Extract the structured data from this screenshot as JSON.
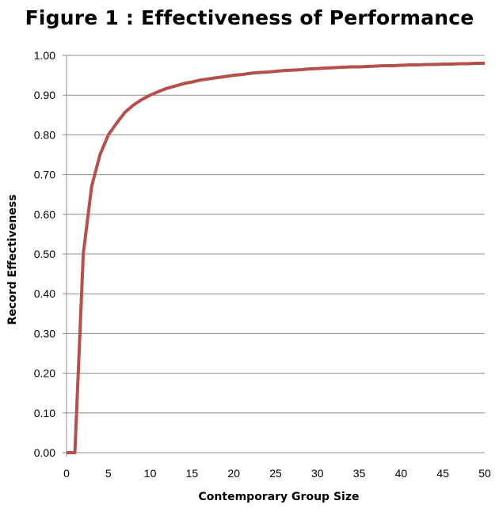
{
  "chart_data": {
    "type": "line",
    "title": "Figure 1 : Effectiveness of Performance",
    "xlabel": "Contemporary Group Size",
    "ylabel": "Record Effectiveness",
    "xlim": [
      0,
      50
    ],
    "ylim": [
      0,
      1
    ],
    "grid": "horizontal",
    "legend": "none",
    "xticks": [
      "0",
      "5",
      "10",
      "15",
      "20",
      "25",
      "30",
      "35",
      "40",
      "45",
      "50"
    ],
    "yticks": [
      "0.00",
      "0.10",
      "0.20",
      "0.30",
      "0.40",
      "0.50",
      "0.60",
      "0.70",
      "0.80",
      "0.90",
      "1.00"
    ],
    "line_color": "#b5504b",
    "x": [
      0,
      1,
      2,
      3,
      4,
      5,
      6,
      7,
      8,
      9,
      10,
      11,
      12,
      13,
      14,
      15,
      16,
      17,
      18,
      19,
      20,
      21,
      22,
      23,
      24,
      25,
      26,
      27,
      28,
      29,
      30,
      31,
      32,
      33,
      34,
      35,
      36,
      37,
      38,
      39,
      40,
      41,
      42,
      43,
      44,
      45,
      46,
      47,
      48,
      49,
      50
    ],
    "series": [
      {
        "values": [
          0.0,
          0.0,
          0.5,
          0.67,
          0.75,
          0.8,
          0.83,
          0.857,
          0.875,
          0.889,
          0.9,
          0.909,
          0.917,
          0.923,
          0.929,
          0.933,
          0.938,
          0.941,
          0.944,
          0.947,
          0.95,
          0.952,
          0.955,
          0.957,
          0.958,
          0.96,
          0.962,
          0.963,
          0.964,
          0.966,
          0.967,
          0.968,
          0.969,
          0.97,
          0.971,
          0.971,
          0.972,
          0.973,
          0.974,
          0.974,
          0.975,
          0.976,
          0.976,
          0.977,
          0.977,
          0.978,
          0.978,
          0.979,
          0.979,
          0.98,
          0.98
        ]
      }
    ]
  }
}
